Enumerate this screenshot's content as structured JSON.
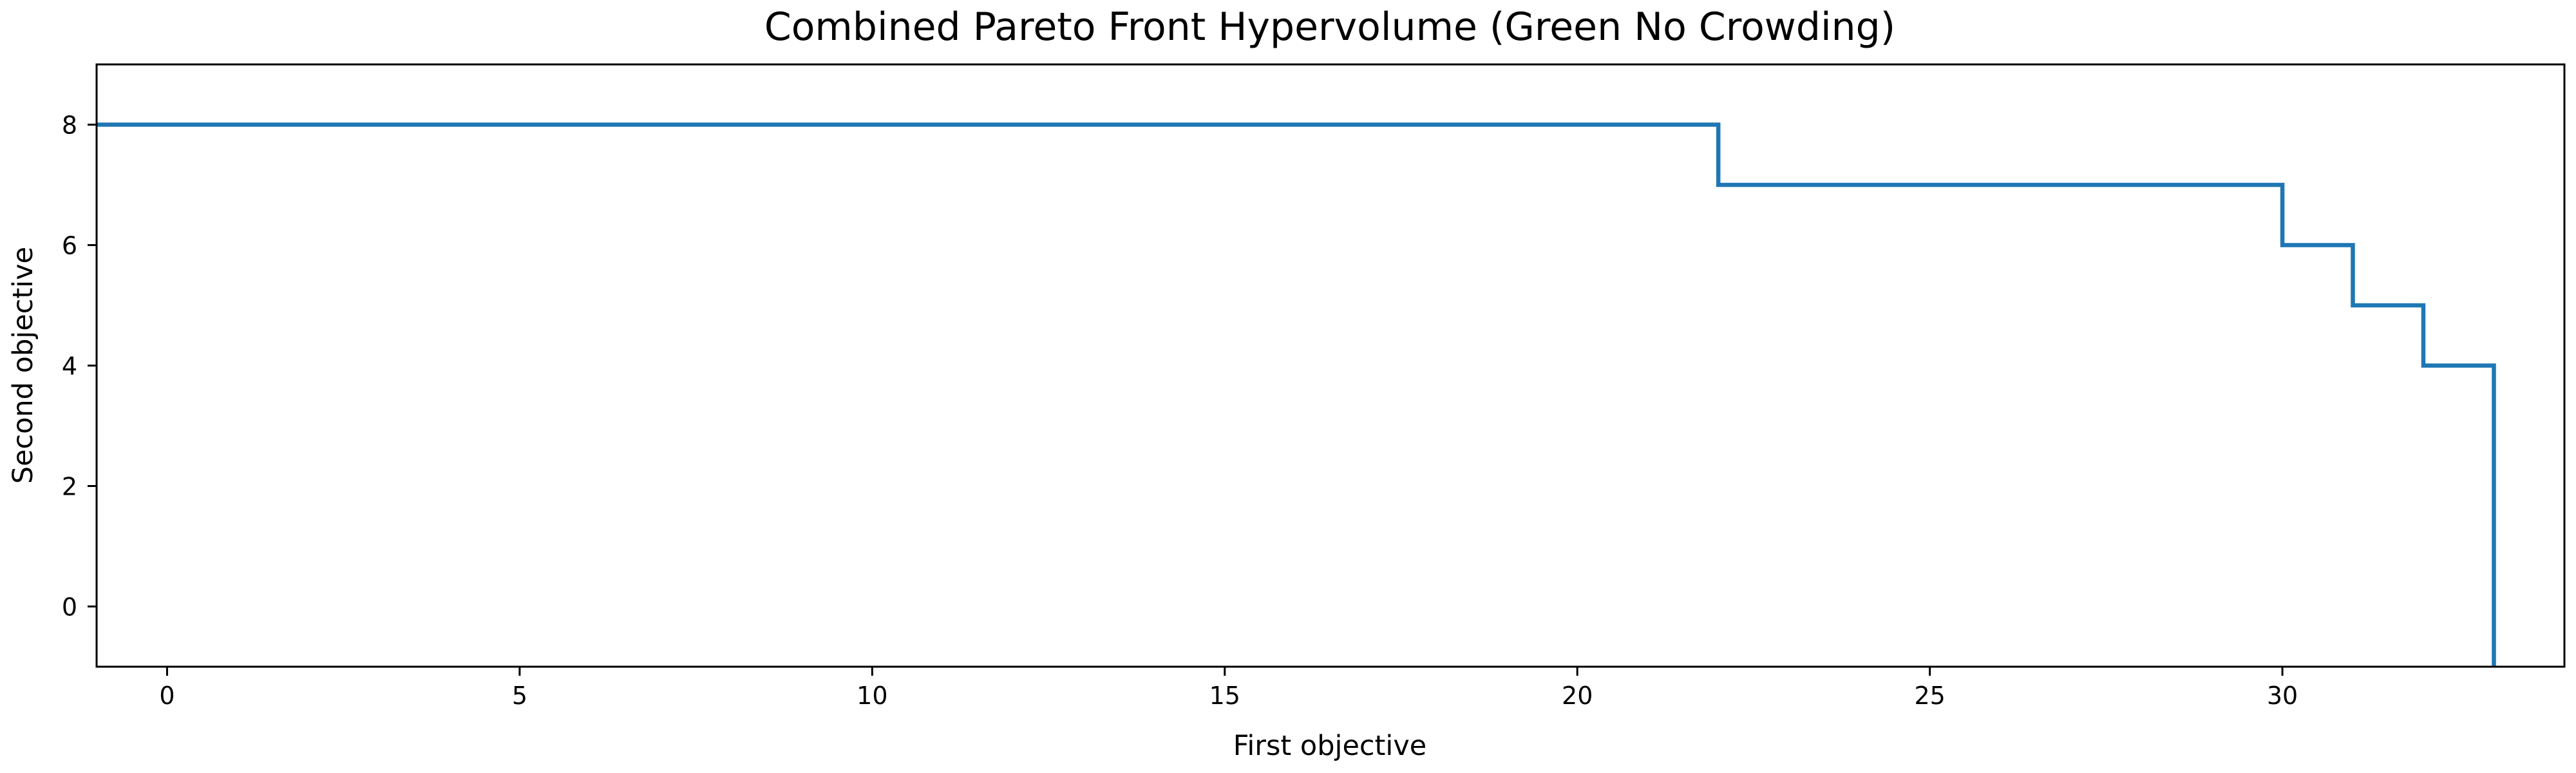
{
  "chart_data": {
    "type": "line",
    "step": "post",
    "title": "Combined Pareto Front Hypervolume (Green No Crowding)",
    "xlabel": "First objective",
    "ylabel": "Second objective",
    "xlim": [
      -1,
      34
    ],
    "ylim": [
      -1,
      9
    ],
    "xticks": [
      0,
      5,
      10,
      15,
      20,
      25,
      30
    ],
    "yticks": [
      0,
      2,
      4,
      6,
      8
    ],
    "grid": false,
    "series": [
      {
        "color": "#1f77b4",
        "x": [
          -1,
          22,
          22,
          30,
          30,
          31,
          31,
          32,
          32,
          33,
          33
        ],
        "y": [
          8,
          8,
          7,
          7,
          6,
          6,
          5,
          5,
          4,
          4,
          -1
        ]
      }
    ]
  }
}
